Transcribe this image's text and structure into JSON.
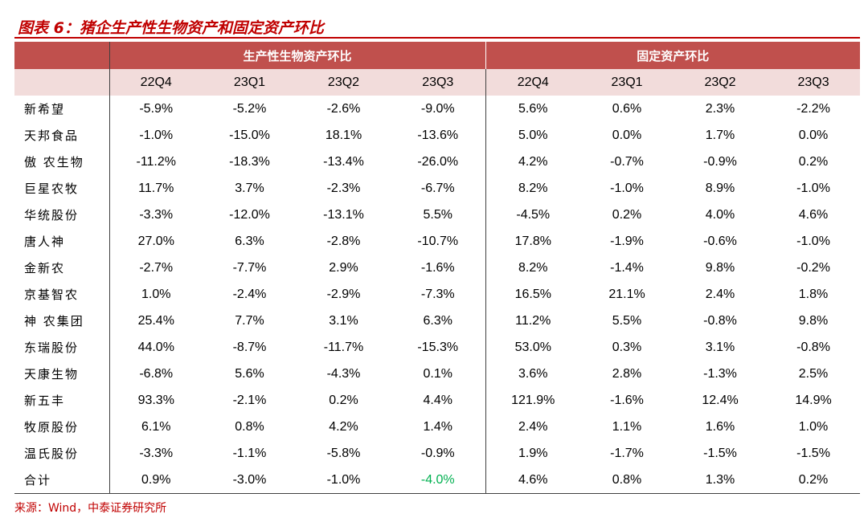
{
  "title": "图表 6：猪企生产性生物资产和固定资产环比",
  "groups": [
    "生产性生物资产环比",
    "固定资产环比"
  ],
  "quarters": [
    "22Q4",
    "23Q1",
    "23Q2",
    "23Q3",
    "22Q4",
    "23Q1",
    "23Q2",
    "23Q3"
  ],
  "rows": [
    {
      "name": "新希望",
      "values": [
        "-5.9%",
        "-5.2%",
        "-2.6%",
        "-9.0%",
        "5.6%",
        "0.6%",
        "2.3%",
        "-2.2%"
      ]
    },
    {
      "name": "天邦食品",
      "values": [
        "-1.0%",
        "-15.0%",
        "18.1%",
        "-13.6%",
        "5.0%",
        "0.0%",
        "1.7%",
        "0.0%"
      ]
    },
    {
      "name": "傲 农生物",
      "values": [
        "-11.2%",
        "-18.3%",
        "-13.4%",
        "-26.0%",
        "4.2%",
        "-0.7%",
        "-0.9%",
        "0.2%"
      ]
    },
    {
      "name": "巨星农牧",
      "values": [
        "11.7%",
        "3.7%",
        "-2.3%",
        "-6.7%",
        "8.2%",
        "-1.0%",
        "8.9%",
        "-1.0%"
      ]
    },
    {
      "name": "华统股份",
      "values": [
        "-3.3%",
        "-12.0%",
        "-13.1%",
        "5.5%",
        "-4.5%",
        "0.2%",
        "4.0%",
        "4.6%"
      ]
    },
    {
      "name": "唐人神",
      "values": [
        "27.0%",
        "6.3%",
        "-2.8%",
        "-10.7%",
        "17.8%",
        "-1.9%",
        "-0.6%",
        "-1.0%"
      ]
    },
    {
      "name": "金新农",
      "values": [
        "-2.7%",
        "-7.7%",
        "2.9%",
        "-1.6%",
        "8.2%",
        "-1.4%",
        "9.8%",
        "-0.2%"
      ]
    },
    {
      "name": "京基智农",
      "values": [
        "1.0%",
        "-2.4%",
        "-2.9%",
        "-7.3%",
        "16.5%",
        "21.1%",
        "2.4%",
        "1.8%"
      ]
    },
    {
      "name": "神 农集团",
      "values": [
        "25.4%",
        "7.7%",
        "3.1%",
        "6.3%",
        "11.2%",
        "5.5%",
        "-0.8%",
        "9.8%"
      ]
    },
    {
      "name": "东瑞股份",
      "values": [
        "44.0%",
        "-8.7%",
        "-11.7%",
        "-15.3%",
        "53.0%",
        "0.3%",
        "3.1%",
        "-0.8%"
      ]
    },
    {
      "name": "天康生物",
      "values": [
        "-6.8%",
        "5.6%",
        "-4.3%",
        "0.1%",
        "3.6%",
        "2.8%",
        "-1.3%",
        "2.5%"
      ]
    },
    {
      "name": "新五丰",
      "values": [
        "93.3%",
        "-2.1%",
        "0.2%",
        "4.4%",
        "121.9%",
        "-1.6%",
        "12.4%",
        "14.9%"
      ]
    },
    {
      "name": "牧原股份",
      "values": [
        "6.1%",
        "0.8%",
        "4.2%",
        "1.4%",
        "2.4%",
        "1.1%",
        "1.6%",
        "1.0%"
      ]
    },
    {
      "name": "温氏股份",
      "values": [
        "-3.3%",
        "-1.1%",
        "-5.8%",
        "-0.9%",
        "1.9%",
        "-1.7%",
        "-1.5%",
        "-1.5%"
      ]
    },
    {
      "name": "合计",
      "values": [
        "0.9%",
        "-3.0%",
        "-1.0%",
        "-4.0%",
        "4.6%",
        "0.8%",
        "1.3%",
        "0.2%"
      ]
    }
  ],
  "highlight": {
    "row": 14,
    "col": 3,
    "color": "#00b050"
  },
  "colors": {
    "accent": "#c00000",
    "header": "#c0504d",
    "subheader": "#f2dcdb"
  },
  "source": "来源：Wind，中泰证券研究所"
}
